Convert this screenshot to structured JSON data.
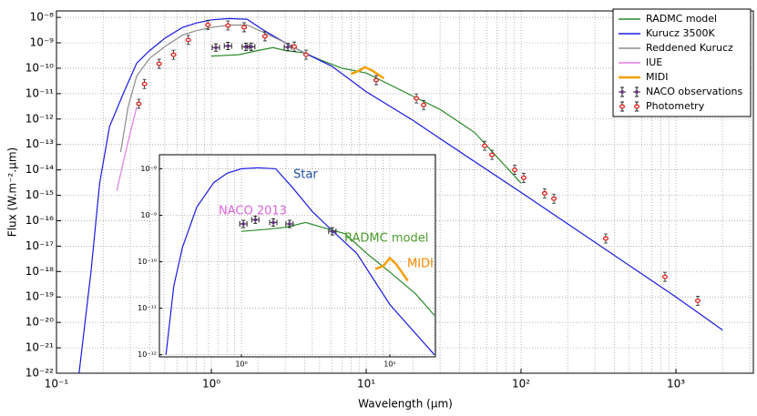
{
  "chart_data": [
    {
      "type": "line",
      "xlabel": "Wavelength (μm)",
      "ylabel": "Flux (W.m⁻².μm)",
      "xscale": "log",
      "yscale": "log",
      "grid": true,
      "minor_xgrid": true,
      "legend": "upper right",
      "xlim": [
        0.1,
        3162
      ],
      "ylim": [
        1e-22,
        1.8e-08
      ],
      "xticks": [
        {
          "value": 0.1,
          "label": "10⁻¹"
        },
        {
          "value": 1,
          "label": "10⁰"
        },
        {
          "value": 10,
          "label": "10¹"
        },
        {
          "value": 100,
          "label": "10²"
        },
        {
          "value": 1000,
          "label": "10³"
        }
      ],
      "yticks": [
        {
          "value": 1e-22,
          "label": "10⁻²²"
        },
        {
          "value": 1e-21,
          "label": "10⁻²¹"
        },
        {
          "value": 1e-20,
          "label": "10⁻²⁰"
        },
        {
          "value": 1e-19,
          "label": "10⁻¹⁹"
        },
        {
          "value": 1e-18,
          "label": "10⁻¹⁸"
        },
        {
          "value": 1e-17,
          "label": "10⁻¹⁷"
        },
        {
          "value": 1e-16,
          "label": "10⁻¹⁶"
        },
        {
          "value": 1e-15,
          "label": "10⁻¹⁵"
        },
        {
          "value": 1e-14,
          "label": "10⁻¹⁴"
        },
        {
          "value": 1e-13,
          "label": "10⁻¹³"
        },
        {
          "value": 1e-12,
          "label": "10⁻¹²"
        },
        {
          "value": 1e-11,
          "label": "10⁻¹¹"
        },
        {
          "value": 1e-10,
          "label": "10⁻¹⁰"
        },
        {
          "value": 1e-09,
          "label": "10⁻⁹"
        },
        {
          "value": 1e-08,
          "label": "10⁻⁸"
        }
      ],
      "series": [
        {
          "name": "RADMC model",
          "color": "#2a8a2a",
          "marker": "line",
          "x": [
            1.0,
            1.5,
            2.0,
            2.5,
            3,
            4,
            5,
            7,
            10,
            20,
            30,
            50,
            100
          ],
          "values": [
            3e-10,
            3.4e-10,
            5e-10,
            6.5e-10,
            5e-10,
            4e-10,
            2.2e-10,
            1e-10,
            6.5e-11,
            8e-12,
            2.4e-12,
            3e-13,
            3e-15
          ]
        },
        {
          "name": "Kurucz 3500K",
          "color": "#1a1adf",
          "marker": "line",
          "x": [
            0.14,
            0.167,
            0.19,
            0.22,
            0.27,
            0.33,
            0.4,
            0.5,
            0.65,
            0.8,
            1.0,
            1.3,
            1.7,
            2.2,
            3.0,
            4.0,
            6.0,
            10,
            20,
            28.8,
            100,
            1000,
            2000
          ],
          "values": [
            1e-22,
            1e-18,
            3e-15,
            5e-13,
            1e-11,
            1.6e-10,
            5e-10,
            1.5e-09,
            4e-09,
            6e-09,
            8e-09,
            9e-09,
            8.5e-09,
            3e-09,
            1e-09,
            4e-10,
            1.2e-10,
            1.2e-11,
            9e-13,
            2e-13,
            1.3e-15,
            1e-19,
            5e-21
          ]
        },
        {
          "name": "Reddened Kurucz",
          "color": "#8c8c8c",
          "marker": "line",
          "x": [
            0.26,
            0.29,
            0.33,
            0.4,
            0.5,
            0.65,
            0.8,
            1.0,
            1.3,
            1.7,
            2.2,
            3,
            4
          ],
          "values": [
            5e-14,
            3e-12,
            5e-11,
            2.5e-10,
            7e-10,
            2e-09,
            3e-09,
            4e-09,
            5e-09,
            5e-09,
            2.5e-09,
            1e-09,
            4e-10
          ]
        },
        {
          "name": "IUE",
          "color": "#e07ee0",
          "marker": "line",
          "x": [
            0.245,
            0.27,
            0.3,
            0.33
          ],
          "values": [
            1.5e-15,
            2e-14,
            3e-13,
            3e-12
          ]
        },
        {
          "name": "MIDI",
          "color": "#f5a000",
          "marker": "line",
          "x": [
            8,
            9,
            9.8,
            11,
            13
          ],
          "values": [
            6e-11,
            8e-11,
            1.1e-10,
            8e-11,
            4e-11
          ]
        },
        {
          "name": "NACO observations",
          "color": "#6a2a8a",
          "marker": "cross",
          "x": [
            1.07,
            1.28,
            1.67,
            1.81,
            3.12
          ],
          "values": [
            6.5e-10,
            7.5e-10,
            7e-10,
            7e-10,
            6.8e-10
          ]
        },
        {
          "name": "Photometry",
          "color": "#e0201a",
          "marker": "ellipse",
          "x": [
            0.34,
            0.37,
            0.46,
            0.57,
            0.71,
            0.95,
            1.28,
            1.63,
            2.22,
            3.43,
            4.09,
            11.6,
            21.1,
            23.5,
            58.2,
            64.9,
            91,
            104,
            142,
            163,
            352,
            849,
            1384
          ],
          "values": [
            4e-12,
            2.4e-11,
            1.5e-10,
            3.4e-10,
            1.3e-09,
            5.1e-09,
            4.8e-09,
            4.1e-09,
            1.8e-09,
            7.1e-10,
            3.4e-10,
            3.4e-11,
            6.5e-12,
            3.6e-12,
            8.9e-14,
            3.9e-14,
            1e-14,
            4.9e-15,
            1.2e-15,
            7.4e-16,
            2e-17,
            6.2e-19,
            7.1e-20
          ]
        }
      ]
    },
    {
      "type": "line",
      "xscale": "log",
      "yscale": "log",
      "grid": true,
      "minor_xgrid": true,
      "xlim": [
        0.28,
        20.3
      ],
      "ylim": [
        9e-13,
        2e-08
      ],
      "xticks": [
        {
          "value": 1,
          "label": "10⁰"
        },
        {
          "value": 10,
          "label": "10¹"
        }
      ],
      "yticks": [
        {
          "value": 1e-12,
          "label": "10⁻¹²"
        },
        {
          "value": 1e-11,
          "label": "10⁻¹¹"
        },
        {
          "value": 1e-10,
          "label": "10⁻¹⁰"
        },
        {
          "value": 1e-09,
          "label": "10⁻⁹"
        },
        {
          "value": 1e-08,
          "label": "10⁻⁸"
        }
      ],
      "annotations": [
        {
          "text": "Star",
          "color": "#1f4e9c"
        },
        {
          "text": "NACO 2013",
          "color": "#dd66dd"
        },
        {
          "text": "RADMC model",
          "color": "#4a9a2a"
        },
        {
          "text": "MIDI",
          "color": "#f08a00"
        }
      ],
      "series": [
        {
          "color": "#1a1adf",
          "marker": "line",
          "x": [
            0.31,
            0.35,
            0.4,
            0.5,
            0.65,
            0.8,
            1.0,
            1.3,
            1.7,
            2.2,
            3.0,
            4.0,
            6.0,
            10,
            20
          ],
          "values": [
            1e-12,
            3e-11,
            2e-10,
            1.5e-09,
            5e-09,
            8e-09,
            1e-08,
            1.05e-08,
            1e-08,
            4e-09,
            1.2e-09,
            5e-10,
            1.5e-10,
            1.2e-11,
            1e-12
          ]
        },
        {
          "color": "#2a8a2a",
          "marker": "line",
          "x": [
            1.0,
            1.5,
            2.0,
            2.7,
            3.5,
            5,
            7,
            10,
            15,
            20
          ],
          "values": [
            4.5e-10,
            5e-10,
            5.5e-10,
            7e-10,
            5.5e-10,
            4e-10,
            1.5e-10,
            6e-11,
            2e-11,
            7e-12
          ]
        },
        {
          "color": "#f5a000",
          "marker": "line",
          "x": [
            8,
            9,
            10,
            11,
            13.2
          ],
          "values": [
            7e-11,
            8e-11,
            1.2e-10,
            9e-11,
            3.9e-11
          ]
        },
        {
          "color": "#6a2a8a",
          "marker": "cross",
          "x": [
            1.03,
            1.24,
            1.64,
            2.11,
            4.1
          ],
          "values": [
            6.5e-10,
            8e-10,
            7e-10,
            6.5e-10,
            4.5e-10
          ]
        }
      ]
    }
  ]
}
